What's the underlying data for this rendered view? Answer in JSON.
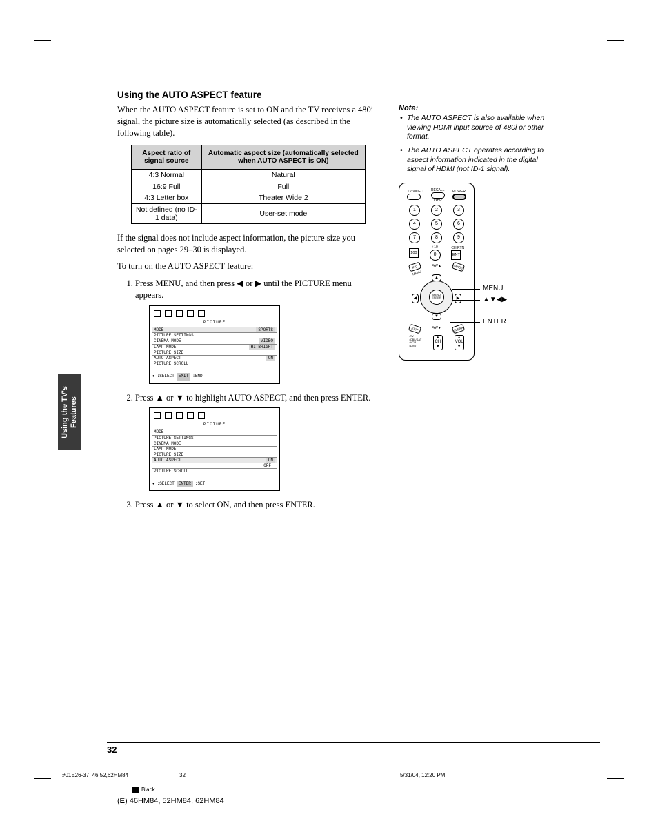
{
  "heading": "Using the AUTO ASPECT feature",
  "intro": "When the AUTO ASPECT feature is set to ON and the TV receives a 480i signal, the picture size is automatically selected (as described in the following table).",
  "table": {
    "headers": [
      "Aspect ratio of signal source",
      "Automatic aspect size (automatically selected when AUTO ASPECT is ON)"
    ],
    "rows": [
      [
        "4:3 Normal",
        "Natural"
      ],
      [
        "16:9 Full",
        "Full"
      ],
      [
        "4:3 Letter box",
        "Theater Wide 2"
      ],
      [
        "Not defined (no ID-1 data)",
        "User-set mode"
      ]
    ]
  },
  "after_table_1": "If the signal does not include aspect information, the picture size you selected on pages 29–30 is displayed.",
  "after_table_2": "To turn on the AUTO ASPECT feature:",
  "steps": {
    "s1_a": "Press MENU, and then press ",
    "s1_b": " or ",
    "s1_c": " until the PICTURE menu appears.",
    "s2_a": "Press ",
    "s2_b": " or ",
    "s2_c": " to highlight AUTO ASPECT, and then press ENTER.",
    "s3_a": "Press ",
    "s3_b": " or ",
    "s3_c": " to select ON, and then press ENTER."
  },
  "arrows": {
    "left": "◀",
    "right": "▶",
    "up": "▲",
    "down": "▼",
    "updown": "▲▼◀▶"
  },
  "osd1": {
    "title": "PICTURE",
    "rows": [
      {
        "k": "MODE",
        "v": "SPORTS",
        "hl": true
      },
      {
        "k": "PICTURE SETTINGS",
        "v": ""
      },
      {
        "k": "CINEMA MODE",
        "v": "VIDEO"
      },
      {
        "k": "LAMP MODE",
        "v": "HI BRIGHT"
      },
      {
        "k": "PICTURE SIZE",
        "v": ""
      },
      {
        "k": "AUTO ASPECT",
        "v": "ON"
      },
      {
        "k": "PICTURE SCROLL",
        "v": ""
      }
    ],
    "footer_select": ":SELECT",
    "footer_btn": "EXIT",
    "footer_end": ":END"
  },
  "osd2": {
    "title": "PICTURE",
    "rows": [
      {
        "k": "MODE",
        "v": ""
      },
      {
        "k": "PICTURE SETTINGS",
        "v": ""
      },
      {
        "k": "CINEMA MODE",
        "v": ""
      },
      {
        "k": "LAMP MODE",
        "v": ""
      },
      {
        "k": "PICTURE SIZE",
        "v": ""
      },
      {
        "k": "AUTO ASPECT",
        "v": "ON",
        "hl": true,
        "v2": "OFF"
      },
      {
        "k": "PICTURE SCROLL",
        "v": ""
      }
    ],
    "footer_select": ":SELECT",
    "footer_btn": "ENTER",
    "footer_end": ":SET"
  },
  "note": {
    "head": "Note:",
    "items": [
      "The AUTO ASPECT is also available when viewing HDMI input source of 480i or other format.",
      "The AUTO ASPECT operates according to aspect information indicated in the digital signal of HDMI (not ID-1 signal)."
    ]
  },
  "remote": {
    "top_labels": [
      "TV/VIDEO",
      "RECALL",
      "POWER"
    ],
    "nums": [
      "1",
      "2",
      "3",
      "4",
      "5",
      "6",
      "7",
      "8",
      "9",
      "100",
      "0",
      "ENT"
    ],
    "sub_labels": {
      "info": "INFO",
      "plus10": "+10",
      "chrtn": "CH RTN"
    },
    "fav_up": "FAV▲",
    "fav_down": "FAV▼",
    "dpad_center": "MENU ENTER",
    "corner_tl": "PIC MENU",
    "corner_tr": "GUIDE",
    "corner_bl": "EXIT",
    "corner_br": "CLEAR",
    "mode": [
      "TV",
      "CBL/SAT",
      "VCR",
      "DVD"
    ],
    "ch": "CH",
    "vol": "VOL"
  },
  "callouts": {
    "menu": "MENU",
    "arrows": "▲▼◀▶",
    "enter": "ENTER"
  },
  "side_tab_l1": "Using the TV's",
  "side_tab_l2": "Features",
  "page_num": "32",
  "footer": {
    "file": "#01E26-37_46,52,62HM84",
    "pg": "32",
    "date": "5/31/04, 12:20 PM",
    "black": "Black",
    "model_prefix": "(E) ",
    "model": "46HM84, 52HM84, 62HM84"
  }
}
